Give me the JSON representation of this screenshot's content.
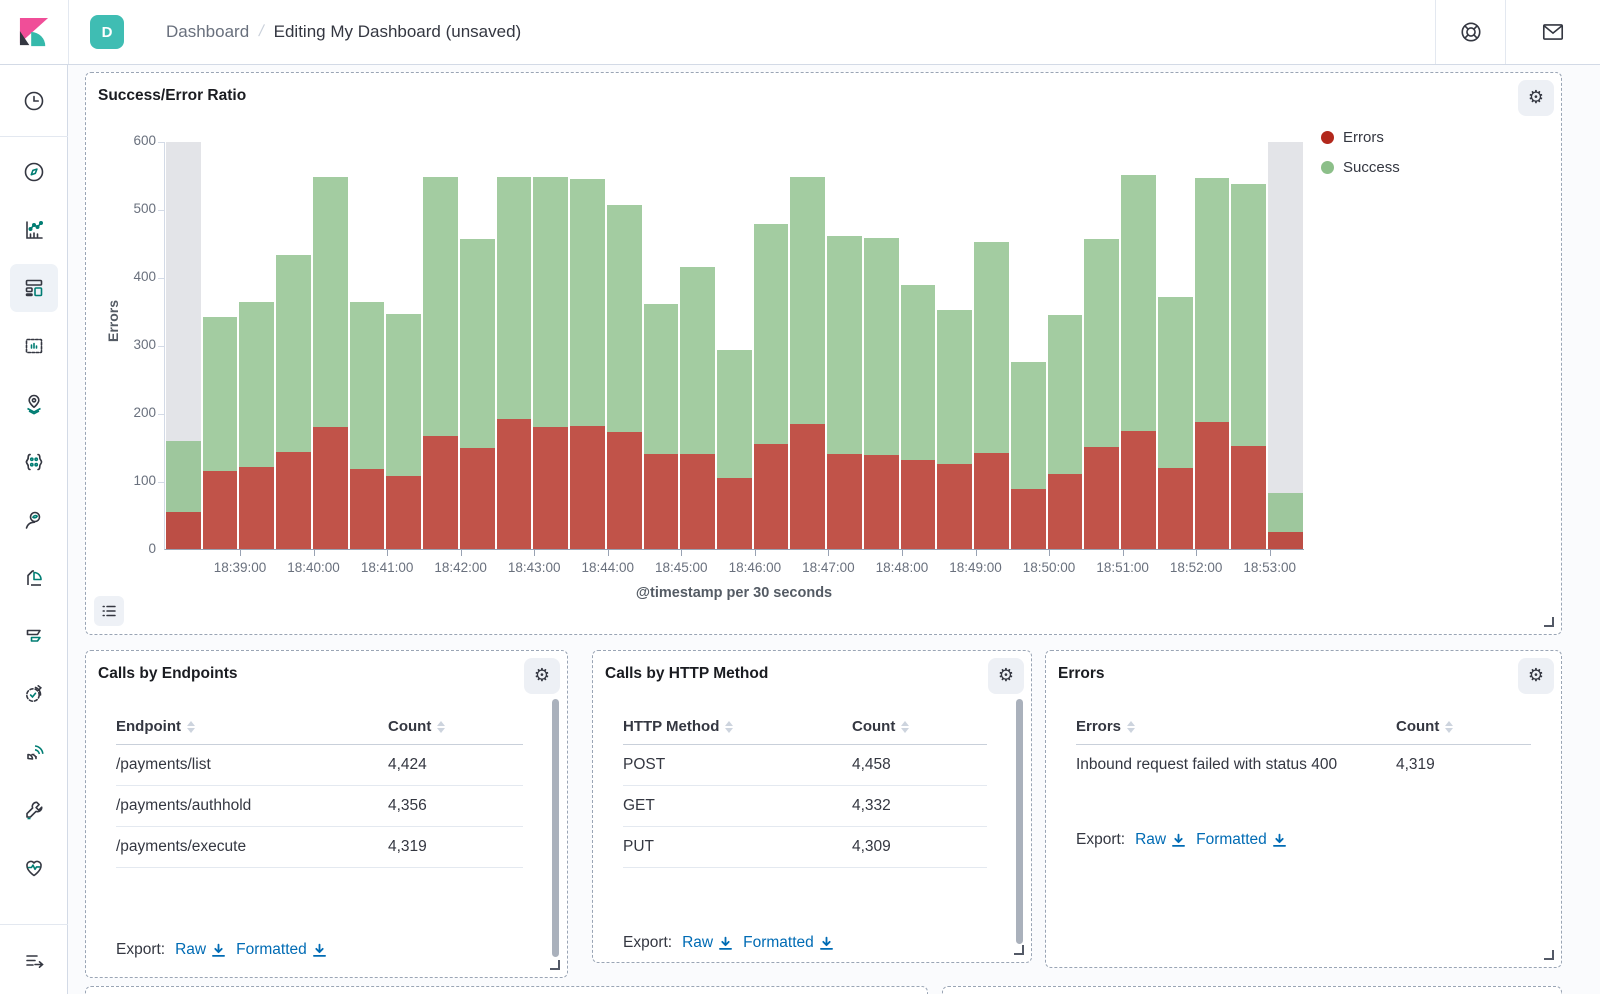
{
  "header": {
    "space_badge": "D",
    "breadcrumbs": {
      "root": "Dashboard",
      "separator": "/",
      "current": "Editing My Dashboard (unsaved)"
    },
    "right_icons": [
      "help",
      "mail"
    ]
  },
  "sidebar": {
    "selected": "dashboard",
    "icons": [
      "recently-viewed",
      "discover",
      "visualize",
      "dashboard",
      "canvas",
      "maps",
      "machine-learning",
      "users",
      "analytics",
      "filters",
      "uptime",
      "apm",
      "dev-tools",
      "monitoring",
      "collapse-menu"
    ]
  },
  "colors": {
    "errors": "#b2281c",
    "success": "#8cbf89",
    "ghost_bucket": "#e3e4e8",
    "link_blue": "#006bb4",
    "badge_teal": "#3fbdb3"
  },
  "chart_data": {
    "type": "bar",
    "stacked": true,
    "title": "Success/Error Ratio",
    "xlabel": "@timestamp per 30 seconds",
    "ylabel": "Errors",
    "ylim": [
      0,
      600
    ],
    "y_ticks": [
      0,
      100,
      200,
      300,
      400,
      500,
      600
    ],
    "x_tick_labels": [
      "18:39:00",
      "18:40:00",
      "18:41:00",
      "18:42:00",
      "18:43:00",
      "18:44:00",
      "18:45:00",
      "18:46:00",
      "18:47:00",
      "18:48:00",
      "18:49:00",
      "18:50:00",
      "18:51:00",
      "18:52:00",
      "18:53:00"
    ],
    "legend_position": "right",
    "partial_buckets": {
      "first": true,
      "last": true
    },
    "series": [
      {
        "name": "Errors",
        "color": "#b2281c",
        "values": [
          55,
          115,
          120,
          142,
          180,
          118,
          108,
          166,
          148,
          191,
          180,
          181,
          172,
          140,
          140,
          104,
          154,
          184,
          140,
          138,
          131,
          125,
          141,
          88,
          110,
          150,
          174,
          119,
          187,
          152,
          25
        ]
      },
      {
        "name": "Success",
        "color": "#8cbf89",
        "values": [
          105,
          227,
          243,
          290,
          368,
          246,
          238,
          381,
          308,
          356,
          367,
          363,
          334,
          221,
          275,
          188,
          324,
          363,
          320,
          319,
          257,
          226,
          311,
          187,
          234,
          306,
          377,
          251,
          359,
          385,
          58
        ]
      }
    ]
  },
  "panels": {
    "chart": {
      "title": "Success/Error Ratio"
    },
    "endpoints": {
      "title": "Calls by Endpoints",
      "columns": [
        "Endpoint",
        "Count"
      ],
      "rows": [
        [
          "/payments/list",
          "4,424"
        ],
        [
          "/payments/authhold",
          "4,356"
        ],
        [
          "/payments/execute",
          "4,319"
        ]
      ],
      "export_label": "Export:",
      "raw_link": "Raw",
      "formatted_link": "Formatted"
    },
    "http_method": {
      "title": "Calls by HTTP Method",
      "columns": [
        "HTTP Method",
        "Count"
      ],
      "rows": [
        [
          "POST",
          "4,458"
        ],
        [
          "GET",
          "4,332"
        ],
        [
          "PUT",
          "4,309"
        ]
      ],
      "export_label": "Export:",
      "raw_link": "Raw",
      "formatted_link": "Formatted"
    },
    "errors": {
      "title": "Errors",
      "columns": [
        "Errors",
        "Count"
      ],
      "rows": [
        [
          "Inbound request failed with status 400",
          "4,319"
        ]
      ],
      "export_label": "Export:",
      "raw_link": "Raw",
      "formatted_link": "Formatted"
    }
  }
}
